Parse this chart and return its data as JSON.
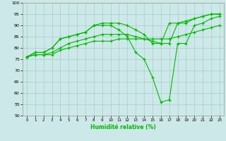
{
  "xlabel": "Humidité relative (%)",
  "background_color": "#cce8e8",
  "grid_color": "#aacccc",
  "line_color": "#00bb00",
  "xlim": [
    -0.5,
    23.5
  ],
  "ylim": [
    50,
    100
  ],
  "yticks": [
    50,
    55,
    60,
    65,
    70,
    75,
    80,
    85,
    90,
    95,
    100
  ],
  "xticks": [
    0,
    1,
    2,
    3,
    4,
    5,
    6,
    7,
    8,
    9,
    10,
    11,
    12,
    13,
    14,
    15,
    16,
    17,
    18,
    19,
    20,
    21,
    22,
    23
  ],
  "series": [
    [
      76,
      78,
      78,
      80,
      84,
      85,
      86,
      87,
      90,
      91,
      91,
      91,
      90,
      88,
      86,
      82,
      82,
      91,
      91,
      92,
      93,
      94,
      95,
      95
    ],
    [
      76,
      78,
      78,
      80,
      84,
      85,
      86,
      87,
      90,
      90,
      90,
      88,
      85,
      78,
      75,
      67,
      56,
      57,
      82,
      82,
      90,
      91,
      93,
      94
    ],
    [
      76,
      77,
      77,
      78,
      80,
      82,
      83,
      84,
      85,
      86,
      86,
      86,
      86,
      85,
      84,
      83,
      82,
      82,
      91,
      91,
      93,
      94,
      95,
      95
    ],
    [
      76,
      77,
      77,
      77,
      79,
      80,
      81,
      82,
      83,
      83,
      83,
      84,
      84,
      84,
      84,
      84,
      84,
      84,
      85,
      86,
      87,
      88,
      89,
      90
    ]
  ]
}
